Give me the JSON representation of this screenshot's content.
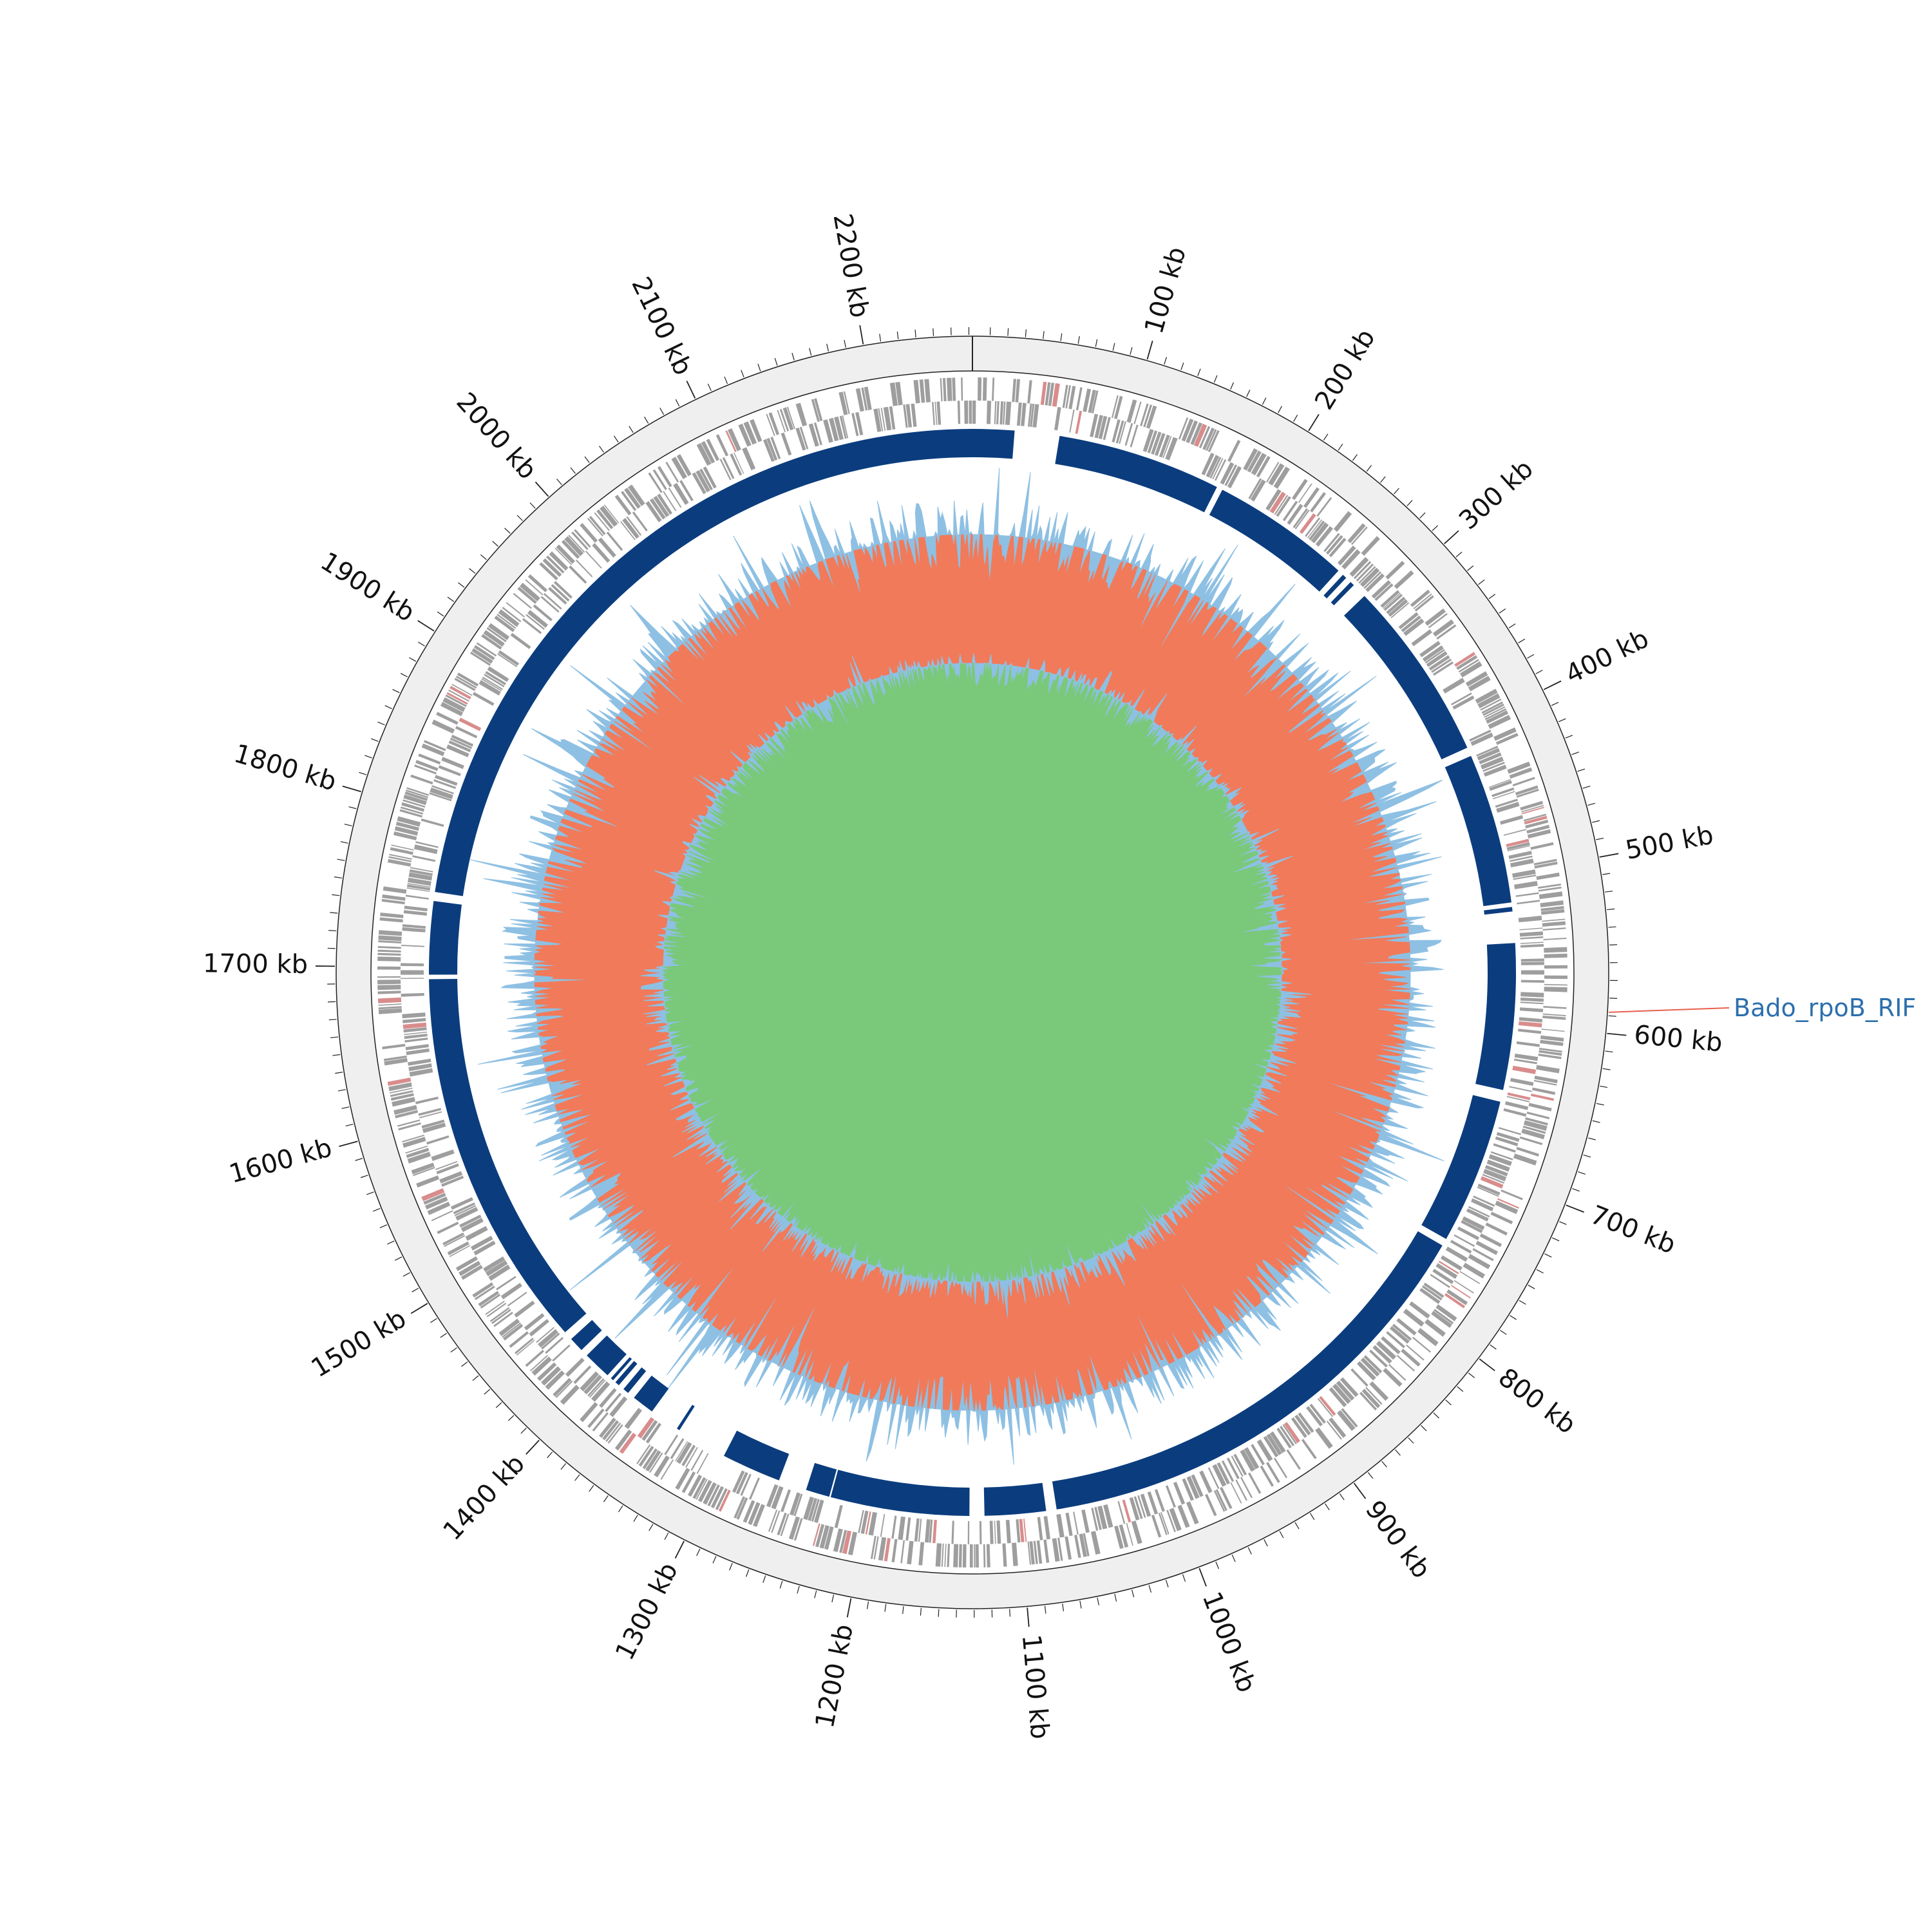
{
  "genome": {
    "length_kb": 2262,
    "tick_labels": [
      "100 kb",
      "200 kb",
      "300 kb",
      "400 kb",
      "500 kb",
      "600 kb",
      "700 kb",
      "800 kb",
      "900 kb",
      "1000 kb",
      "1100 kb",
      "1200 kb",
      "1300 kb",
      "1400 kb",
      "1500 kb",
      "1600 kb",
      "1700 kb",
      "1800 kb",
      "1900 kb",
      "2000 kb",
      "2100 kb",
      "2200 kb"
    ],
    "major_tick_positions_kb": [
      100,
      200,
      300,
      400,
      500,
      600,
      700,
      800,
      900,
      1000,
      1100,
      1200,
      1300,
      1400,
      1500,
      1600,
      1700,
      1800,
      1900,
      2000,
      2100,
      2200
    ]
  },
  "annotation": {
    "label": "Bado_rpoB_RIF",
    "position_kb": 588,
    "label_color": "#2c6fad",
    "line_color": "#e8604c"
  },
  "colors": {
    "ideogram_fill": "#efefef",
    "gene_features": "#9e9e9e",
    "gene_features_highlight": "#d98c8c",
    "alignment_track": "#0b3d7e",
    "gc_content_positive": "#8ec0e3",
    "gc_content_negative": "#f17a5a",
    "gc_skew_positive": "#8ec0e3",
    "gc_skew_negative": "#7ac97a",
    "axis": "#222222"
  },
  "tracks": {
    "alignment_blocks_kb": [
      [
        0,
        28
      ],
      [
        58,
        168
      ],
      [
        172,
        266
      ],
      [
        270,
        273
      ],
      [
        277,
        280
      ],
      [
        290,
        412
      ],
      [
        418,
        519
      ],
      [
        522,
        525
      ],
      [
        546,
        644
      ],
      [
        652,
        750
      ],
      [
        755,
        1075
      ],
      [
        1082,
        1123
      ],
      [
        1133,
        1226
      ],
      [
        1227,
        1243
      ],
      [
        1262,
        1302
      ],
      [
        1336,
        1338
      ],
      [
        1358,
        1373
      ],
      [
        1378,
        1382
      ],
      [
        1386,
        1389
      ],
      [
        1391,
        1393
      ],
      [
        1396,
        1415
      ],
      [
        1420,
        1430
      ],
      [
        1436,
        1692
      ],
      [
        1695,
        1744
      ],
      [
        1750,
        2262
      ]
    ]
  }
}
